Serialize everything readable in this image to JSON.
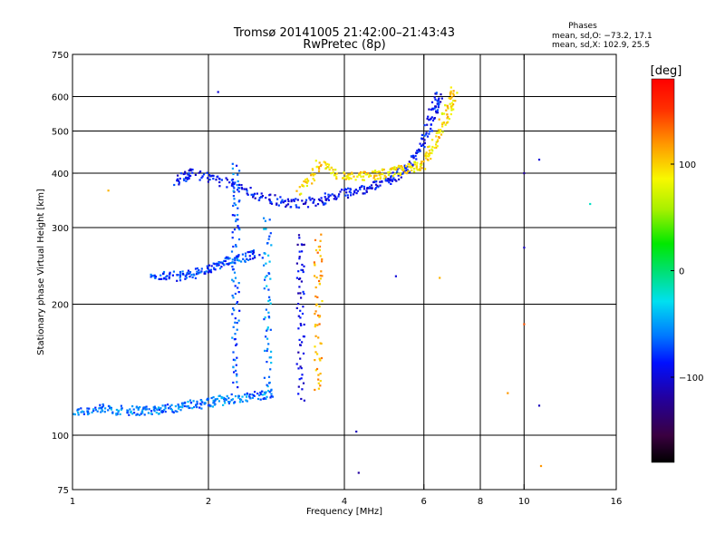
{
  "chart_data": {
    "type": "scatter",
    "title": "Tromsø 20141005 21:42:00–21:43:43",
    "subtitle": "RwPretec (8p)",
    "xlabel": "Frequency [MHz]",
    "ylabel": "Stationary phase Virtual Height [km]",
    "x_scale": "log",
    "y_scale": "log",
    "xlim": [
      1,
      16
    ],
    "ylim": [
      75,
      750
    ],
    "x_ticks": [
      1,
      2,
      4,
      6,
      8,
      10,
      16
    ],
    "y_ticks": [
      75,
      100,
      200,
      300,
      400,
      500,
      600,
      750
    ],
    "x_grid": [
      2,
      4,
      6,
      8,
      10
    ],
    "y_grid": [
      100,
      200,
      300,
      400,
      500,
      600
    ],
    "grid": true,
    "stats": {
      "heading": "Phases",
      "line_o": "mean, sd,O: −73.2, 17.1",
      "line_x": "mean, sd,X: 102.9, 25.5"
    },
    "colorbar": {
      "label": "[deg]",
      "range": [
        -180,
        180
      ],
      "ticks": [
        100,
        0,
        -100
      ],
      "tick_labels": [
        "100",
        "0",
        "−100"
      ],
      "colormap": "rainbow (black-purple-blue-cyan-green-yellow-orange-red)"
    },
    "traces": [
      {
        "name": "low F-region trace",
        "points": [
          [
            1.0,
            113
          ],
          [
            1.15,
            115
          ],
          [
            1.3,
            114
          ],
          [
            1.45,
            114
          ],
          [
            1.6,
            115
          ],
          [
            1.8,
            117
          ],
          [
            2.0,
            119
          ],
          [
            2.2,
            121
          ],
          [
            2.5,
            123
          ],
          [
            2.8,
            125
          ]
        ],
        "phase": -60
      },
      {
        "name": "F1 trace",
        "points": [
          [
            1.5,
            232
          ],
          [
            1.7,
            232
          ],
          [
            1.9,
            236
          ],
          [
            2.1,
            245
          ],
          [
            2.3,
            255
          ],
          [
            2.6,
            262
          ]
        ],
        "phase": -75
      },
      {
        "name": "F2 ordinary",
        "points": [
          [
            1.7,
            385
          ],
          [
            1.85,
            400
          ],
          [
            2.2,
            380
          ],
          [
            2.6,
            355
          ],
          [
            3.0,
            340
          ],
          [
            3.5,
            345
          ],
          [
            4.0,
            360
          ],
          [
            4.5,
            370
          ],
          [
            5.0,
            385
          ],
          [
            5.5,
            410
          ],
          [
            6.0,
            470
          ],
          [
            6.3,
            560
          ],
          [
            6.5,
            600
          ]
        ],
        "phase": -90
      },
      {
        "name": "F2 extraordinary",
        "points": [
          [
            3.2,
            360
          ],
          [
            3.5,
            420
          ],
          [
            4.0,
            390
          ],
          [
            4.5,
            395
          ],
          [
            5.0,
            400
          ],
          [
            5.5,
            410
          ],
          [
            6.0,
            420
          ],
          [
            6.4,
            480
          ],
          [
            6.8,
            560
          ],
          [
            7.0,
            620
          ]
        ],
        "phase": 95
      },
      {
        "name": "vertical band 2.3 MHz",
        "points": [
          [
            2.3,
            130
          ],
          [
            2.3,
            200
          ],
          [
            2.3,
            300
          ],
          [
            2.3,
            420
          ]
        ],
        "phase": -70
      },
      {
        "name": "vertical band 2.7 MHz",
        "points": [
          [
            2.7,
            125
          ],
          [
            2.7,
            200
          ],
          [
            2.7,
            320
          ]
        ],
        "phase": -55
      },
      {
        "name": "vertical band 3.2 MHz",
        "points": [
          [
            3.2,
            120
          ],
          [
            3.2,
            200
          ],
          [
            3.2,
            290
          ]
        ],
        "phase": -100
      },
      {
        "name": "vertical band 3.5 MHz",
        "points": [
          [
            3.5,
            125
          ],
          [
            3.5,
            200
          ],
          [
            3.5,
            290
          ]
        ],
        "phase": 115
      }
    ],
    "sparse_points": [
      {
        "x": 1.2,
        "y": 365,
        "phase": 110
      },
      {
        "x": 2.1,
        "y": 615,
        "phase": -100
      },
      {
        "x": 4.3,
        "y": 82,
        "phase": -120
      },
      {
        "x": 4.25,
        "y": 102,
        "phase": -110
      },
      {
        "x": 5.2,
        "y": 232,
        "phase": -100
      },
      {
        "x": 10.0,
        "y": 400,
        "phase": -120
      },
      {
        "x": 10.0,
        "y": 270,
        "phase": -110
      },
      {
        "x": 10.0,
        "y": 180,
        "phase": 140
      },
      {
        "x": 10.9,
        "y": 85,
        "phase": 120
      },
      {
        "x": 10.8,
        "y": 117,
        "phase": -110
      },
      {
        "x": 10.8,
        "y": 430,
        "phase": -100
      },
      {
        "x": 14.0,
        "y": 340,
        "phase": -20
      },
      {
        "x": 9.2,
        "y": 125,
        "phase": 120
      },
      {
        "x": 6.5,
        "y": 230,
        "phase": 110
      }
    ]
  }
}
